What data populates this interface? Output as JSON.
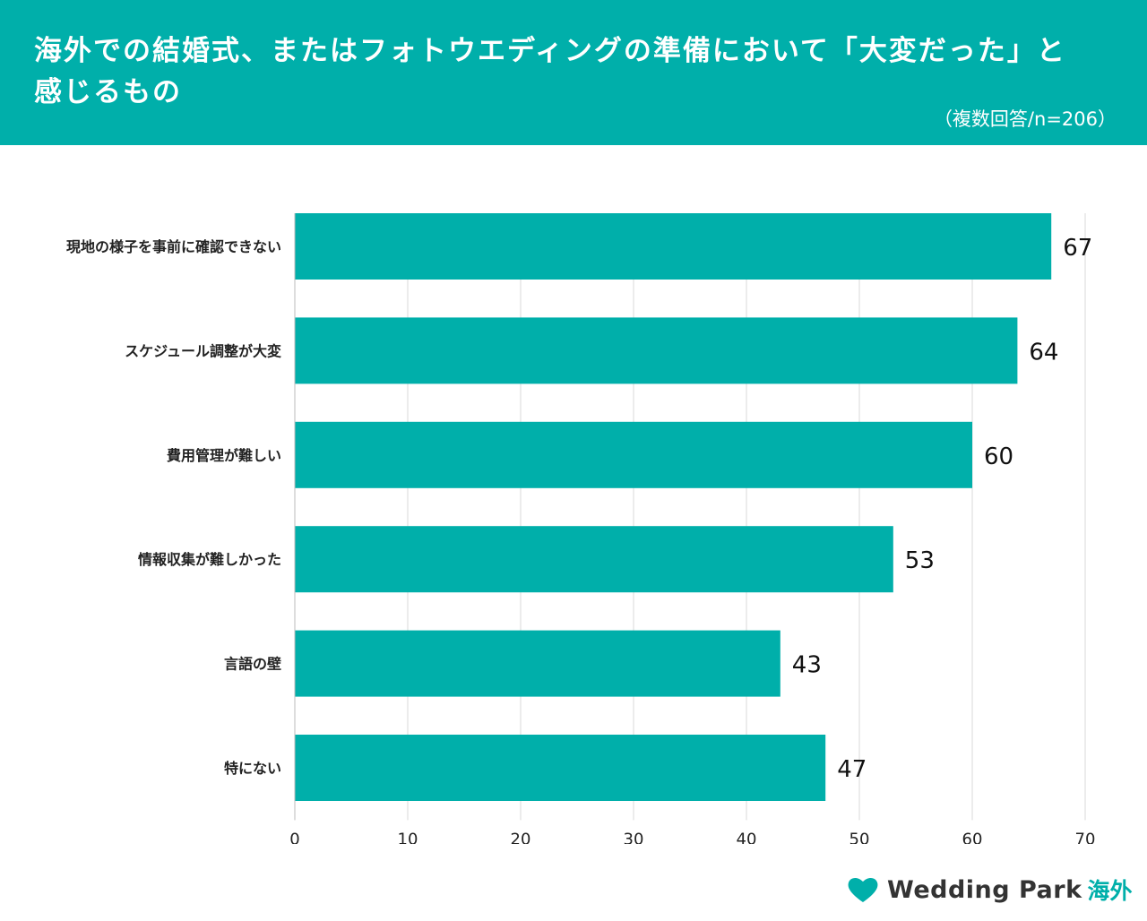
{
  "header": {
    "title": "海外での結婚式、またはフォトウエディングの準備において「大変だった」と感じるもの",
    "subtitle": "（複数回答/n=206）"
  },
  "chart_data": {
    "type": "bar",
    "orientation": "horizontal",
    "categories": [
      "現地の様子を事前に確認できない",
      "スケジュール調整が大変",
      "費用管理が難しい",
      "情報収集が難しかった",
      "言語の壁",
      "特にない"
    ],
    "values": [
      67,
      64,
      60,
      53,
      43,
      47
    ],
    "xlim": [
      0,
      70
    ],
    "ticks": [
      0,
      10,
      20,
      30,
      40,
      50,
      60,
      70
    ],
    "grid": "vertical",
    "bar_color": "#00AFAA"
  },
  "logo": {
    "text": "Wedding Park",
    "sub": "海外",
    "heart_color": "#00AFAA"
  }
}
